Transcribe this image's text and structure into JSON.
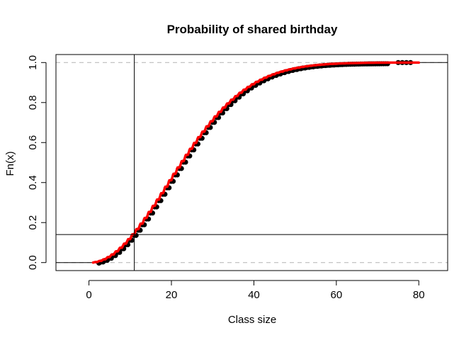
{
  "chart_data": {
    "type": "line",
    "title": "Probability of shared birthday",
    "xlabel": "Class size",
    "ylabel": "Fn(x)",
    "xlim": [
      -8,
      87
    ],
    "ylim": [
      -0.04,
      1.04
    ],
    "x_ticks": [
      0,
      20,
      40,
      60,
      80
    ],
    "y_ticks": [
      0.0,
      0.2,
      0.4,
      0.6,
      0.8,
      1.0
    ],
    "x_tick_labels": [
      "0",
      "20",
      "40",
      "60",
      "80"
    ],
    "y_tick_labels": [
      "0.0",
      "0.2",
      "0.4",
      "0.6",
      "0.8",
      "1.0"
    ],
    "grid": false,
    "dashed_reference_lines_y": [
      0,
      1
    ],
    "reference_lines": {
      "vertical_x": 11,
      "horizontal_y": 0.14
    },
    "series": [
      {
        "kind": "empirical-cdf-points",
        "color": "#000000",
        "x_range": [
          2,
          78
        ],
        "outlier_points": [
          75,
          76,
          77,
          78
        ]
      },
      {
        "kind": "theoretical-curve",
        "color": "#ff0000",
        "formula": "1 - prod_{k=0}^{n-1} (365-k)/365",
        "x_range": [
          1,
          80
        ]
      }
    ]
  }
}
